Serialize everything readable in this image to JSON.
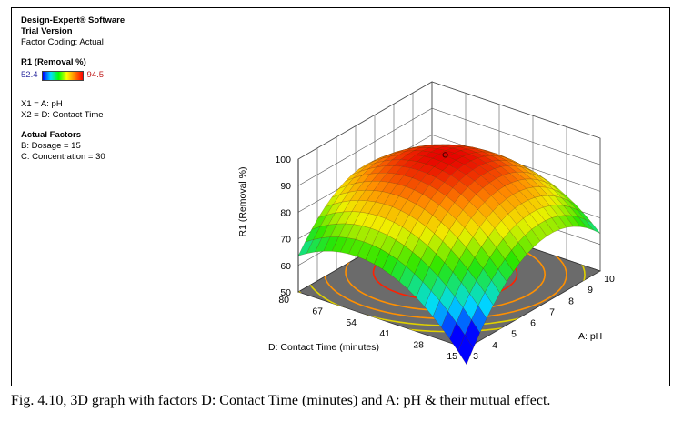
{
  "panel": {
    "software": "Design-Expert® Software",
    "version": "Trial Version",
    "factor_coding": "Factor Coding: Actual",
    "response_label": "R1 (Removal %)",
    "legend_min": "52.4",
    "legend_max": "94.5",
    "x1": "X1 = A: pH",
    "x2": "X2 = D: Contact Time",
    "actual_factors_title": "Actual Factors",
    "factor_b": "B: Dosage = 15",
    "factor_c": "C: Concentration = 30"
  },
  "caption": "Fig. 4.10, 3D graph with factors D: Contact Time (minutes) and A: pH & their mutual effect.",
  "colors": {
    "floor": "#6b6b6b",
    "contour_high": "#ff2000",
    "contour_mid": "#ff9000",
    "contour_low": "#e0d000",
    "wall_grid": "#555555"
  },
  "chart_data": {
    "type": "surface",
    "zlabel": "R1 (Removal %)",
    "xlabel": "A: pH",
    "ylabel": "D: Contact Time (minutes)",
    "x_range": [
      3,
      10
    ],
    "y_range": [
      15,
      80
    ],
    "z_range": [
      50,
      100
    ],
    "x_ticks": [
      "3",
      "4",
      "5",
      "6",
      "7",
      "8",
      "9",
      "10"
    ],
    "y_ticks": [
      "15",
      "28",
      "41",
      "54",
      "67",
      "80"
    ],
    "z_ticks": [
      "50",
      "60",
      "70",
      "80",
      "90",
      "100"
    ],
    "surface_peak": {
      "x": 6.9,
      "y": 52,
      "z": 94.5
    },
    "corners": [
      {
        "x": 3,
        "y": 15,
        "z": 52.4
      },
      {
        "x": 10,
        "y": 15,
        "z": 66
      },
      {
        "x": 3,
        "y": 80,
        "z": 75
      },
      {
        "x": 10,
        "y": 80,
        "z": 82
      }
    ],
    "contour_levels": [
      88,
      82,
      76,
      70,
      64
    ]
  }
}
